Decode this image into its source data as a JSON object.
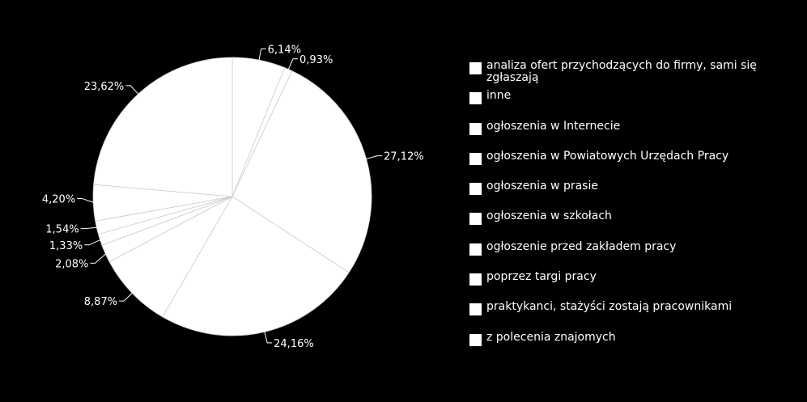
{
  "colors": {
    "background": "#000000",
    "slice_fill": "#ffffff",
    "slice_border": "#cccccc",
    "text": "#ffffff"
  },
  "chart_data": {
    "type": "pie",
    "categories": [
      "analiza ofert przychodzących do firmy, sami się zgłaszają",
      "inne",
      "ogłoszenia w Internecie",
      "ogłoszenia w Powiatowych Urzędach Pracy",
      "ogłoszenia w prasie",
      "ogłoszenia w szkołach",
      "ogłoszenie przed zakładem pracy",
      "poprzez targi pracy",
      "praktykanci, stażyści zostają pracownikami",
      "z polecenia znajomych"
    ],
    "values": [
      6.14,
      0.93,
      27.12,
      24.16,
      8.87,
      2.08,
      1.33,
      1.54,
      4.2,
      23.62
    ],
    "data_labels": [
      "6,14%",
      "0,93%",
      "27,12%",
      "24,16%",
      "8,87%",
      "2,08%",
      "1,33%",
      "1,54%",
      "4,20%",
      "23,62%"
    ],
    "start_angle_deg": 0,
    "direction": "clockwise",
    "legend_position": "right"
  }
}
